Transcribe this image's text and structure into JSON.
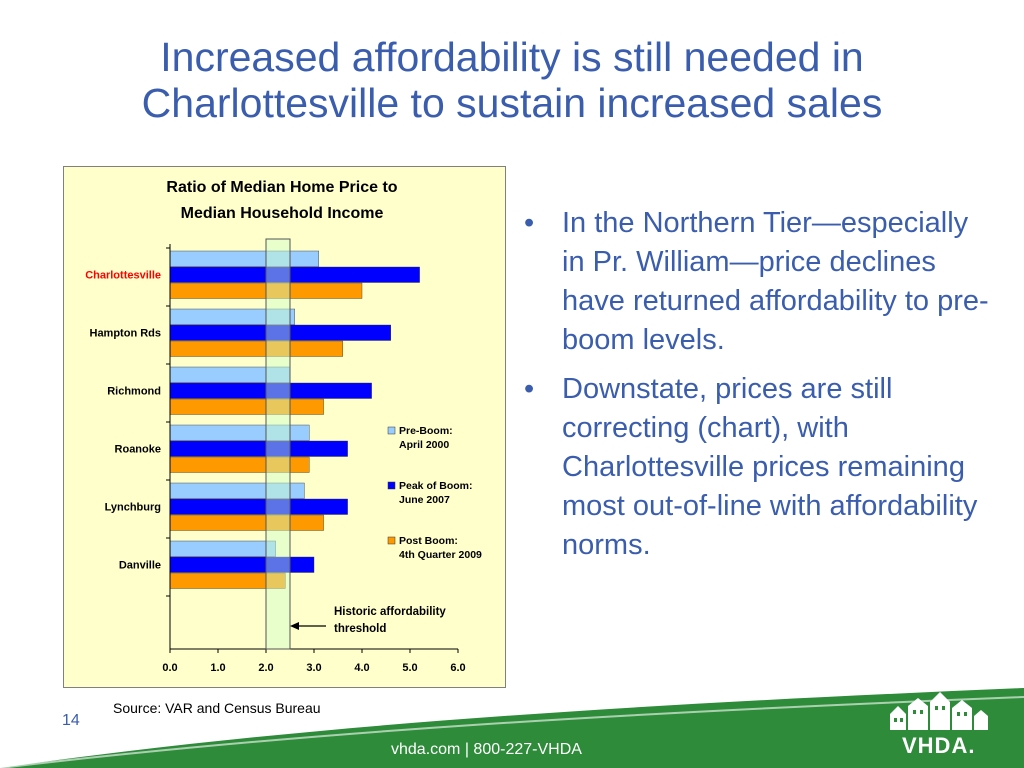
{
  "slide": {
    "title": "Increased affordability is still needed in Charlottesville to sustain increased sales",
    "page_number": "14",
    "source": "Source:  VAR and Census Bureau",
    "footer_contact": "vhda.com | 800-227-VHDA",
    "logo_text": "VHDA."
  },
  "bullets": [
    "In the Northern Tier—especially in Pr. William—price declines have returned affordability to pre-boom levels.",
    "Downstate, prices are still correcting (chart), with Charlottesville prices remaining most out-of-line with affordability norms."
  ],
  "colors": {
    "title_blue": "#3A5DAE",
    "pre_boom": "#99CCFF",
    "peak_boom": "#0000FF",
    "post_boom": "#FF9900",
    "threshold_band": "#CCFFCC",
    "chart_bg": "#FFFFCC",
    "highlight_label": "#FF0000",
    "footer_green": "#2E8B3A"
  },
  "chart_data": {
    "type": "bar",
    "orientation": "horizontal",
    "title": "Ratio of Median Home Price to Median Household Income",
    "categories": [
      "Charlottesville",
      "Hampton Rds",
      "Richmond",
      "Roanoke",
      "Lynchburg",
      "Danville"
    ],
    "highlight_category": "Charlottesville",
    "series": [
      {
        "name": "Pre-Boom: April 2000",
        "legend_lines": [
          "Pre-Boom:",
          "April 2000"
        ],
        "values": [
          3.1,
          2.6,
          2.5,
          2.9,
          2.8,
          2.2
        ]
      },
      {
        "name": "Peak of Boom: June 2007",
        "legend_lines": [
          "Peak of Boom:",
          "June 2007"
        ],
        "values": [
          5.2,
          4.6,
          4.2,
          3.7,
          3.7,
          3.0
        ]
      },
      {
        "name": "Post Boom: 4th Quarter 2009",
        "legend_lines": [
          "Post Boom:",
          "4th Quarter 2009"
        ],
        "values": [
          4.0,
          3.6,
          3.2,
          2.9,
          3.2,
          2.4
        ]
      }
    ],
    "x_ticks": [
      "0.0",
      "1.0",
      "2.0",
      "3.0",
      "4.0",
      "5.0",
      "6.0"
    ],
    "xlim": [
      0,
      6
    ],
    "threshold_band": [
      2.0,
      2.5
    ],
    "annotation": "Historic affordability threshold",
    "legend_position": "right",
    "grid": false
  }
}
